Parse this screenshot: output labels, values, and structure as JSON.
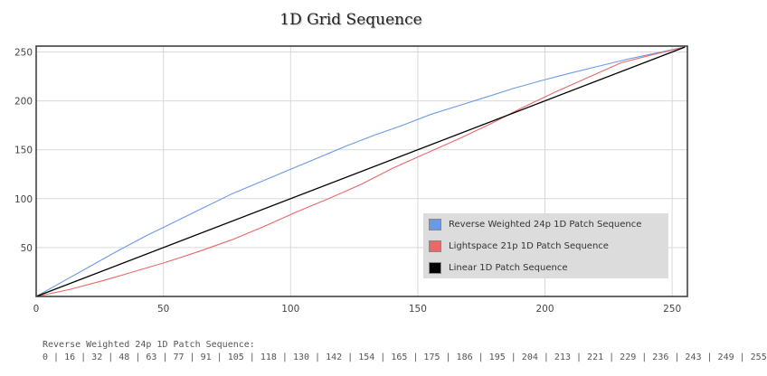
{
  "chart_data": {
    "type": "line",
    "title": "1D Grid Sequence",
    "xlabel": "",
    "ylabel": "",
    "xlim": [
      0,
      256
    ],
    "ylim": [
      0,
      256
    ],
    "x_ticks": [
      0,
      50,
      100,
      150,
      200,
      250
    ],
    "y_ticks": [
      50,
      100,
      150,
      200,
      250
    ],
    "grid": true,
    "legend_position": "bottom-right",
    "series": [
      {
        "name": "Reverse Weighted 24p 1D Patch Sequence",
        "color": "#6a9ae6",
        "x": [
          0,
          11,
          22,
          33,
          44,
          55,
          66,
          77,
          89,
          100,
          111,
          122,
          133,
          144,
          155,
          166,
          177,
          188,
          199,
          211,
          222,
          233,
          244,
          255
        ],
        "y": [
          0,
          16,
          32,
          48,
          63,
          77,
          91,
          105,
          118,
          130,
          142,
          154,
          165,
          175,
          186,
          195,
          204,
          213,
          221,
          229,
          236,
          243,
          249,
          255
        ]
      },
      {
        "name": "Lightspace 21p 1D Patch Sequence",
        "color": "#ea6868",
        "x": [
          0,
          13,
          26,
          38,
          51,
          64,
          77,
          89,
          102,
          115,
          128,
          140,
          153,
          166,
          179,
          191,
          204,
          217,
          230,
          242,
          255
        ],
        "y": [
          0,
          7,
          16,
          25,
          35,
          46,
          58,
          71,
          86,
          100,
          115,
          131,
          146,
          161,
          177,
          193,
          209,
          224,
          239,
          247,
          255
        ]
      },
      {
        "name": "Linear 1D Patch Sequence",
        "color": "#000000",
        "x": [
          0,
          255
        ],
        "y": [
          0,
          255
        ]
      }
    ]
  },
  "footer": {
    "label": "Reverse Weighted 24p 1D Patch Sequence:",
    "values": "0 | 16 | 32 | 48 | 63 | 77 | 91 | 105 | 118 | 130 | 142 | 154 | 165 | 175 | 186 | 195 | 204 | 213 | 221 | 229 | 236 | 243 | 249 | 255"
  }
}
